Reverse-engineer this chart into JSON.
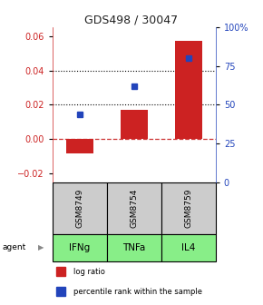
{
  "title": "GDS498 / 30047",
  "samples": [
    "GSM8749",
    "GSM8754",
    "GSM8759"
  ],
  "agents": [
    "IFNg",
    "TNFa",
    "IL4"
  ],
  "log_ratio": [
    -0.008,
    0.017,
    0.057
  ],
  "percentile_rank": [
    44.0,
    62.0,
    80.0
  ],
  "ylim_left": [
    -0.025,
    0.065
  ],
  "ylim_right": [
    0,
    100
  ],
  "left_yticks": [
    -0.02,
    0.0,
    0.02,
    0.04,
    0.06
  ],
  "right_yticks": [
    0,
    25,
    50,
    75,
    100
  ],
  "right_yticklabels": [
    "0",
    "25",
    "50",
    "75",
    "100%"
  ],
  "dotted_lines": [
    0.02,
    0.04
  ],
  "zero_line_color": "#cc3333",
  "bar_color": "#cc2222",
  "dot_color": "#2244bb",
  "agent_bg_color": "#88ee88",
  "sample_bg_color": "#cccccc",
  "title_color": "#222222",
  "left_axis_color": "#cc2222",
  "right_axis_color": "#2244bb",
  "legend_bar_label": "log ratio",
  "legend_dot_label": "percentile rank within the sample"
}
